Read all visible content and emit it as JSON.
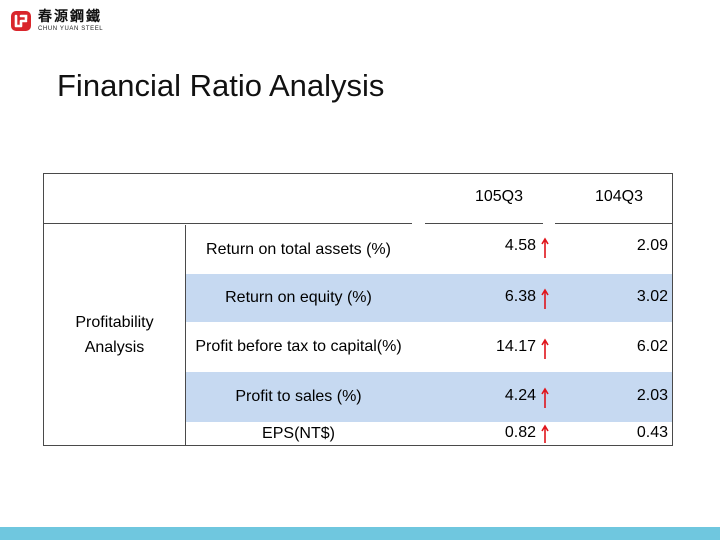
{
  "logo": {
    "chinese_name": "春源鋼鐵",
    "english_name": "CHUN YUAN STEEL",
    "icon": "chun-yuan-logo-icon",
    "color": "#d9262c"
  },
  "title": "Financial Ratio Analysis",
  "table": {
    "columns": [
      "105Q3",
      "104Q3"
    ],
    "group_label": "Profitability Analysis",
    "rows": [
      {
        "label": "Return on total assets (%)",
        "v1": "4.58",
        "v2": "2.09",
        "trend": "up"
      },
      {
        "label": "Return on equity (%)",
        "v1": "6.38",
        "v2": "3.02",
        "trend": "up"
      },
      {
        "label": "Profit before tax to capital(%)",
        "v1": "14.17",
        "v2": "6.02",
        "trend": "up"
      },
      {
        "label": "Profit to sales (%)",
        "v1": "4.24",
        "v2": "2.03",
        "trend": "up"
      },
      {
        "label": "EPS(NT$)",
        "v1": "0.82",
        "v2": "0.43",
        "trend": "up"
      }
    ],
    "shade_color": "#c6d9f1",
    "arrow_color": "#e0141b",
    "arrow_icon": "up-arrow-icon"
  },
  "footer": {
    "bar_color": "#6fc7df"
  }
}
